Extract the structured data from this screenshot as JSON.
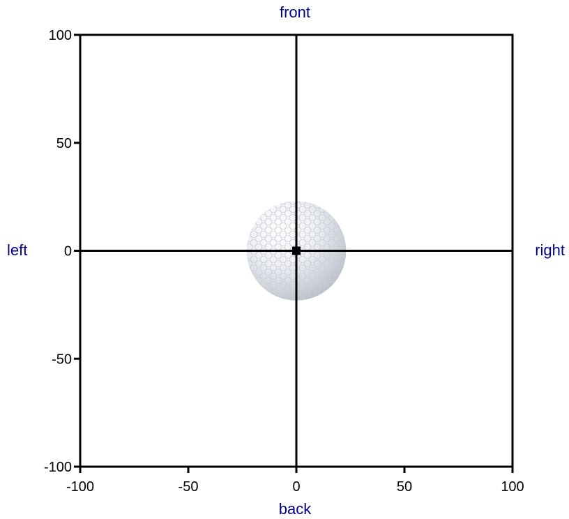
{
  "chart_data": {
    "type": "scatter",
    "xlim": [
      -100,
      100
    ],
    "ylim": [
      -100,
      100
    ],
    "xticks": [
      -100,
      -50,
      0,
      50,
      100
    ],
    "yticks": [
      -100,
      -50,
      0,
      50,
      100
    ],
    "xtick_labels": [
      "-100",
      "-50",
      "0",
      "50",
      "100"
    ],
    "ytick_labels": [
      "-100",
      "-50",
      "0",
      "50",
      "100"
    ],
    "grid": false,
    "axis_lines_at_zero": true,
    "direction_labels": {
      "top": "front",
      "bottom": "back",
      "left": "left",
      "right": "right"
    },
    "points": [
      {
        "x": 0,
        "y": 0,
        "marker": "square"
      }
    ],
    "background_image": "golf-ball",
    "ball_center": {
      "x": 0,
      "y": 0
    },
    "ball_radius": 23
  },
  "colors": {
    "axis": "#000000",
    "label": "#00008b",
    "marker": "#000000"
  }
}
